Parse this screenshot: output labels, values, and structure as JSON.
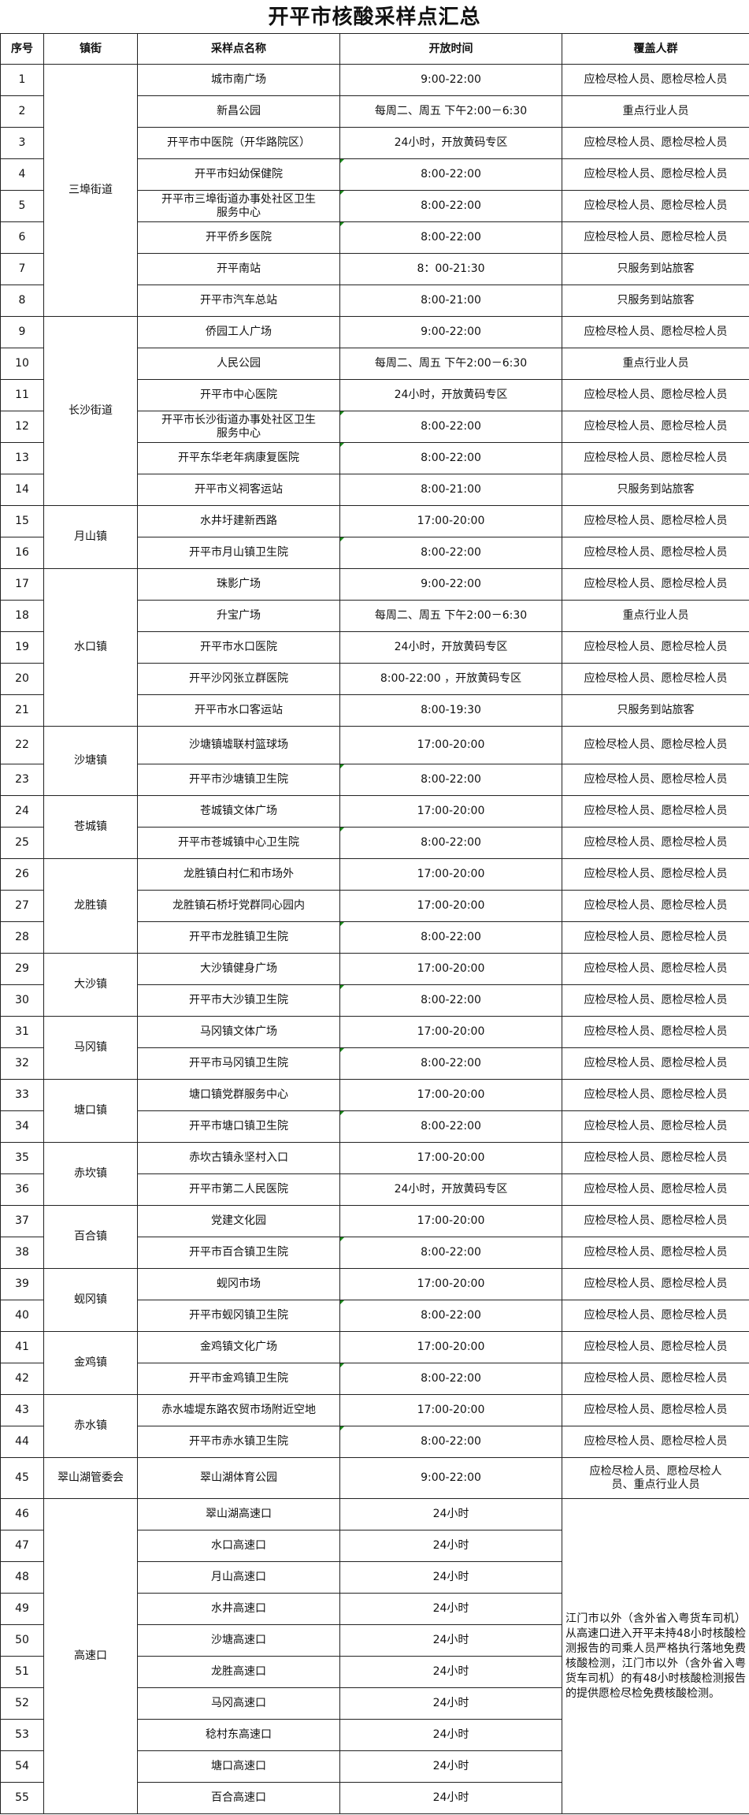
{
  "title": "开平市核酸采样点汇总",
  "headers": [
    "序号",
    "镇街",
    "采样点名称",
    "开放时间",
    "覆盖人群"
  ],
  "groups": [
    {
      "district": "三埠街道",
      "rows": [
        {
          "no": "1",
          "name": "城市南广场",
          "hours": "9:00-22:00",
          "coverage": "应检尽检人员、愿检尽检人员"
        },
        {
          "no": "2",
          "name": "新昌公园",
          "hours": "每周二、周五  下午2:00－6:30",
          "coverage": "重点行业人员"
        },
        {
          "no": "3",
          "name": "开平市中医院（开华路院区）",
          "hours": "24小时，开放黄码专区",
          "coverage": "应检尽检人员、愿检尽检人员"
        },
        {
          "no": "4",
          "name": "开平市妇幼保健院",
          "hours": "8:00-22:00",
          "coverage": "应检尽检人员、愿检尽检人员"
        },
        {
          "no": "5",
          "name": "开平市三埠街道办事处社区卫生服务中心",
          "hours": "8:00-22:00",
          "coverage": "应检尽检人员、愿检尽检人员"
        },
        {
          "no": "6",
          "name": "开平侨乡医院",
          "hours": "8:00-22:00",
          "coverage": "应检尽检人员、愿检尽检人员"
        },
        {
          "no": "7",
          "name": "开平南站",
          "hours": "8：00-21:30",
          "coverage": "只服务到站旅客"
        },
        {
          "no": "8",
          "name": "开平市汽车总站",
          "hours": "8:00-21:00",
          "coverage": "只服务到站旅客"
        }
      ]
    },
    {
      "district": "长沙街道",
      "rows": [
        {
          "no": "9",
          "name": "侨园工人广场",
          "hours": "9:00-22:00",
          "coverage": "应检尽检人员、愿检尽检人员"
        },
        {
          "no": "10",
          "name": "人民公园",
          "hours": "每周二、周五  下午2:00－6:30",
          "coverage": "重点行业人员"
        },
        {
          "no": "11",
          "name": "开平市中心医院",
          "hours": "24小时，开放黄码专区",
          "coverage": "应检尽检人员、愿检尽检人员"
        },
        {
          "no": "12",
          "name": "开平市长沙街道办事处社区卫生服务中心",
          "hours": "8:00-22:00",
          "coverage": "应检尽检人员、愿检尽检人员"
        },
        {
          "no": "13",
          "name": "开平东华老年病康复医院",
          "hours": "8:00-22:00",
          "coverage": "应检尽检人员、愿检尽检人员"
        },
        {
          "no": "14",
          "name": "开平市义祠客运站",
          "hours": "8:00-21:00",
          "coverage": "只服务到站旅客"
        }
      ]
    },
    {
      "district": "月山镇",
      "rows": [
        {
          "no": "15",
          "name": "水井圩建新西路",
          "hours": "17:00-20:00",
          "coverage": "应检尽检人员、愿检尽检人员"
        },
        {
          "no": "16",
          "name": "开平市月山镇卫生院",
          "hours": "8:00-22:00",
          "coverage": "应检尽检人员、愿检尽检人员"
        }
      ]
    },
    {
      "district": "水口镇",
      "rows": [
        {
          "no": "17",
          "name": "珠影广场",
          "hours": "9:00-22:00",
          "coverage": "应检尽检人员、愿检尽检人员"
        },
        {
          "no": "18",
          "name": "升宝广场",
          "hours": "每周二、周五  下午2:00－6:30",
          "coverage": "重点行业人员"
        },
        {
          "no": "19",
          "name": "开平市水口医院",
          "hours": "24小时，开放黄码专区",
          "coverage": "应检尽检人员、愿检尽检人员"
        },
        {
          "no": "20",
          "name": "开平沙冈张立群医院",
          "hours": "8:00-22:00 ，开放黄码专区",
          "coverage": "应检尽检人员、愿检尽检人员"
        },
        {
          "no": "21",
          "name": "开平市水口客运站",
          "hours": "8:00-19:30",
          "coverage": "只服务到站旅客"
        }
      ]
    },
    {
      "district": "沙塘镇",
      "rows": [
        {
          "no": "22",
          "name": "沙塘镇墟联村篮球场",
          "hours": "17:00-20:00",
          "coverage": "应检尽检人员、愿检尽检人员"
        },
        {
          "no": "23",
          "name": "开平市沙塘镇卫生院",
          "hours": "8:00-22:00",
          "coverage": "应检尽检人员、愿检尽检人员"
        }
      ]
    },
    {
      "district": "苍城镇",
      "rows": [
        {
          "no": "24",
          "name": "苍城镇文体广场",
          "hours": "17:00-20:00",
          "coverage": "应检尽检人员、愿检尽检人员"
        },
        {
          "no": "25",
          "name": "开平市苍城镇中心卫生院",
          "hours": "8:00-22:00",
          "coverage": "应检尽检人员、愿检尽检人员"
        }
      ]
    },
    {
      "district": "龙胜镇",
      "rows": [
        {
          "no": "26",
          "name": "龙胜镇白村仁和市场外",
          "hours": "17:00-20:00",
          "coverage": "应检尽检人员、愿检尽检人员"
        },
        {
          "no": "27",
          "name": "龙胜镇石桥圩党群同心园内",
          "hours": "17:00-20:00",
          "coverage": "应检尽检人员、愿检尽检人员"
        },
        {
          "no": "28",
          "name": "开平市龙胜镇卫生院",
          "hours": "8:00-22:00",
          "coverage": "应检尽检人员、愿检尽检人员"
        }
      ]
    },
    {
      "district": "大沙镇",
      "rows": [
        {
          "no": "29",
          "name": "大沙镇健身广场",
          "hours": "17:00-20:00",
          "coverage": "应检尽检人员、愿检尽检人员"
        },
        {
          "no": "30",
          "name": "开平市大沙镇卫生院",
          "hours": "8:00-22:00",
          "coverage": "应检尽检人员、愿检尽检人员"
        }
      ]
    },
    {
      "district": "马冈镇",
      "rows": [
        {
          "no": "31",
          "name": "马冈镇文体广场",
          "hours": "17:00-20:00",
          "coverage": "应检尽检人员、愿检尽检人员"
        },
        {
          "no": "32",
          "name": "开平市马冈镇卫生院",
          "hours": "8:00-22:00",
          "coverage": "应检尽检人员、愿检尽检人员"
        }
      ]
    },
    {
      "district": "塘口镇",
      "rows": [
        {
          "no": "33",
          "name": "塘口镇党群服务中心",
          "hours": "17:00-20:00",
          "coverage": "应检尽检人员、愿检尽检人员"
        },
        {
          "no": "34",
          "name": "开平市塘口镇卫生院",
          "hours": "8:00-22:00",
          "coverage": "应检尽检人员、愿检尽检人员"
        }
      ]
    },
    {
      "district": "赤坎镇",
      "rows": [
        {
          "no": "35",
          "name": "赤坎古镇永坚村入口",
          "hours": "17:00-20:00",
          "coverage": "应检尽检人员、愿检尽检人员"
        },
        {
          "no": "36",
          "name": "开平市第二人民医院",
          "hours": "24小时，开放黄码专区",
          "coverage": "应检尽检人员、愿检尽检人员"
        }
      ]
    },
    {
      "district": "百合镇",
      "rows": [
        {
          "no": "37",
          "name": "党建文化园",
          "hours": "17:00-20:00",
          "coverage": "应检尽检人员、愿检尽检人员"
        },
        {
          "no": "38",
          "name": "开平市百合镇卫生院",
          "hours": "8:00-22:00",
          "coverage": "应检尽检人员、愿检尽检人员"
        }
      ]
    },
    {
      "district": "蚬冈镇",
      "rows": [
        {
          "no": "39",
          "name": "蚬冈市场",
          "hours": "17:00-20:00",
          "coverage": "应检尽检人员、愿检尽检人员"
        },
        {
          "no": "40",
          "name": "开平市蚬冈镇卫生院",
          "hours": "8:00-22:00",
          "coverage": "应检尽检人员、愿检尽检人员"
        }
      ]
    },
    {
      "district": "金鸡镇",
      "rows": [
        {
          "no": "41",
          "name": "金鸡镇文化广场",
          "hours": "17:00-20:00",
          "coverage": "应检尽检人员、愿检尽检人员"
        },
        {
          "no": "42",
          "name": "开平市金鸡镇卫生院",
          "hours": "8:00-22:00",
          "coverage": "应检尽检人员、愿检尽检人员"
        }
      ]
    },
    {
      "district": "赤水镇",
      "rows": [
        {
          "no": "43",
          "name": "赤水墟堤东路农贸市场附近空地",
          "hours": "17:00-20:00",
          "coverage": "应检尽检人员、愿检尽检人员"
        },
        {
          "no": "44",
          "name": "开平市赤水镇卫生院",
          "hours": "8:00-22:00",
          "coverage": "应检尽检人员、愿检尽检人员"
        }
      ]
    },
    {
      "district": "翠山湖管委会",
      "rows": [
        {
          "no": "45",
          "name": "翠山湖体育公园",
          "hours": "9:00-22:00",
          "coverage": "应检尽检人员、愿检尽检人员、重点行业人员"
        }
      ]
    },
    {
      "district": "高速口",
      "coverage": "江门市以外（含外省入粤货车司机）从高速口进入开平未持48小时核酸检测报告的司乘人员严格执行落地免费核酸检测，江门市以外（含外省入粤货车司机）的有48小时核酸检测报告的提供愿检尽检免费核酸检测。",
      "rows": [
        {
          "no": "46",
          "name": "翠山湖高速口",
          "hours": "24小时"
        },
        {
          "no": "47",
          "name": "水口高速口",
          "hours": "24小时"
        },
        {
          "no": "48",
          "name": "月山高速口",
          "hours": "24小时"
        },
        {
          "no": "49",
          "name": "水井高速口",
          "hours": "24小时"
        },
        {
          "no": "50",
          "name": "沙塘高速口",
          "hours": "24小时"
        },
        {
          "no": "51",
          "name": "龙胜高速口",
          "hours": "24小时"
        },
        {
          "no": "52",
          "name": "马冈高速口",
          "hours": "24小时"
        },
        {
          "no": "53",
          "name": "稔村东高速口",
          "hours": "24小时"
        },
        {
          "no": "54",
          "name": "塘口高速口",
          "hours": "24小时"
        },
        {
          "no": "55",
          "name": "百合高速口",
          "hours": "24小时"
        }
      ]
    }
  ]
}
